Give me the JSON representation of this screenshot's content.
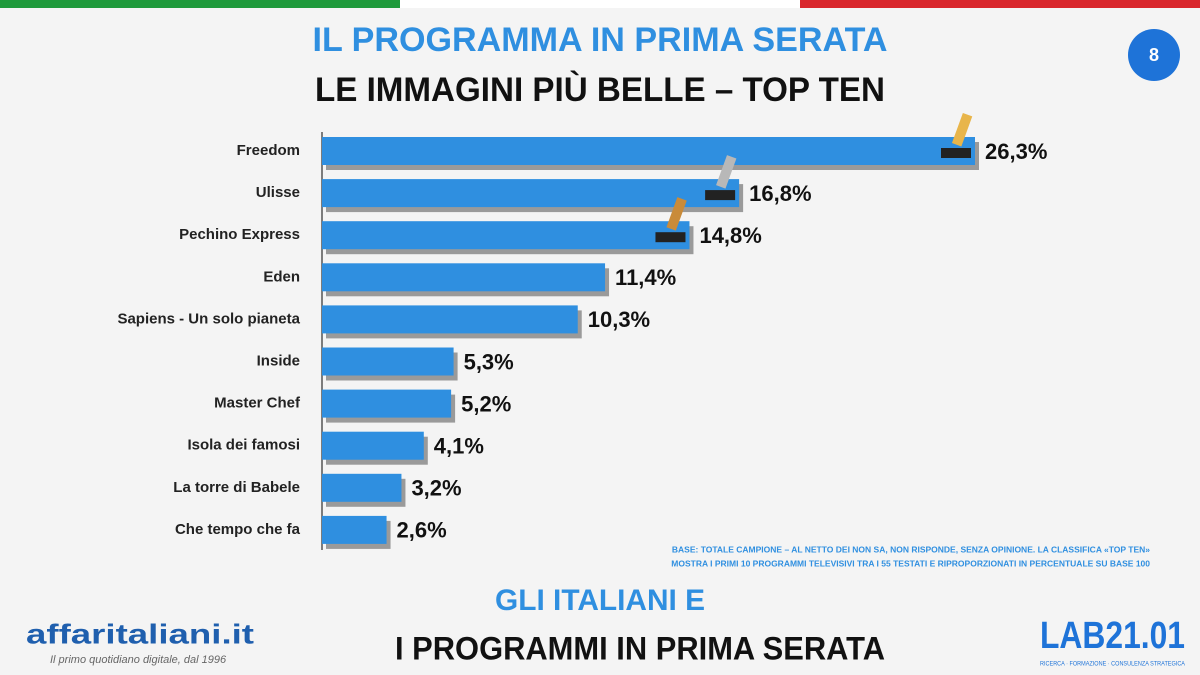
{
  "page_number": "8",
  "chart_data": {
    "type": "bar",
    "orientation": "horizontal",
    "title": "IL PROGRAMMA IN PRIMA SERATA",
    "subtitle": "LE IMMAGINI PIÙ BELLE – TOP TEN",
    "categories": [
      "Freedom",
      "Ulisse",
      "Pechino Express",
      "Eden",
      "Sapiens - Un solo pianeta",
      "Inside",
      "Master Chef",
      "Isola dei famosi",
      "La torre di Babele",
      "Che tempo che fa"
    ],
    "values": [
      26.3,
      16.8,
      14.8,
      11.4,
      10.3,
      5.3,
      5.2,
      4.1,
      3.2,
      2.6
    ],
    "value_labels": [
      "26,3%",
      "16,8%",
      "14,8%",
      "11,4%",
      "10,3%",
      "5,3%",
      "5,2%",
      "4,1%",
      "3,2%",
      "2,6%"
    ],
    "color": "#2f8fe0",
    "note": [
      "BASE: TOTALE CAMPIONE – AL NETTO DEI NON SA, NON RISPONDE, SENZA OPINIONE. LA CLASSIFICA «TOP TEN»",
      "MOSTRA I PRIMI 10 PROGRAMMI TELEVISIVI TRA I 55 TESTATI E RIPROPORZIONATI IN PERCENTUALE SU BASE 100"
    ]
  },
  "footer": {
    "line1": "GLI ITALIANI E",
    "line2": "I PROGRAMMI IN PRIMA SERATA",
    "left_logo": "affaritaliani.it",
    "left_tagline": "Il primo quotidiano digitale, dal 1996",
    "right_logo": "LAB21.01",
    "right_tagline": "RICERCA · FORMAZIONE · CONSULENZA STRATEGICA"
  }
}
